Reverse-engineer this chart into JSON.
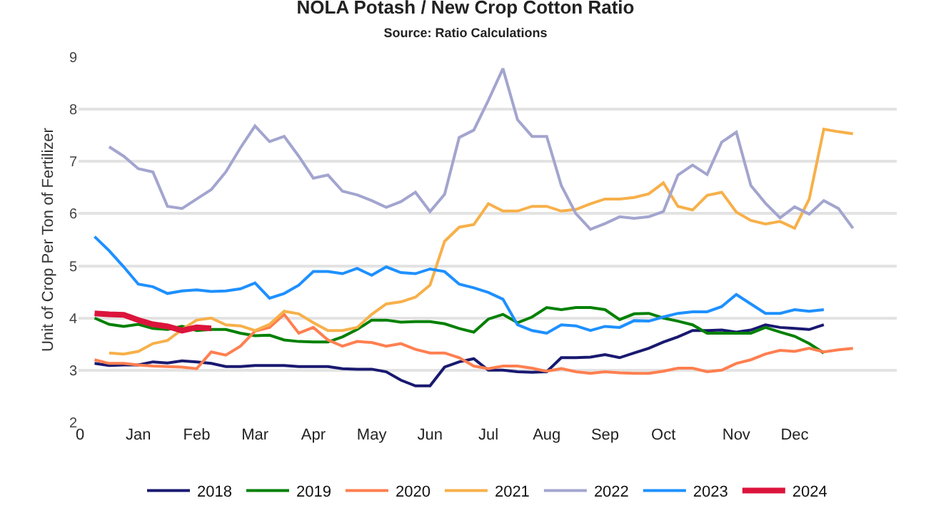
{
  "chart_data": {
    "type": "line",
    "title": "NOLA Potash / New Crop Cotton Ratio",
    "subtitle": "Source: Ratio Calculations",
    "ylabel": "Unit of Crop Per Ton of Fertilizer",
    "categories": [
      "0",
      null,
      null,
      null,
      "Jan",
      null,
      null,
      null,
      "Feb",
      null,
      null,
      null,
      "Mar",
      null,
      null,
      null,
      "Apr",
      null,
      null,
      null,
      "May",
      null,
      null,
      null,
      "Jun",
      null,
      null,
      null,
      "Jul",
      null,
      null,
      null,
      "Aug",
      null,
      null,
      null,
      "Sep",
      null,
      null,
      null,
      "Oct",
      null,
      null,
      null,
      null,
      "Nov",
      null,
      null,
      null,
      "Dec",
      null,
      null,
      null,
      null
    ],
    "ylim": [
      2,
      9
    ],
    "yticks": [
      2,
      3,
      4,
      5,
      6,
      7,
      8,
      9
    ],
    "grid": "y",
    "legend": "bottom",
    "series": [
      {
        "name": "2018",
        "color": "#191970",
        "values": [
          null,
          3.13,
          3.09,
          3.1,
          3.1,
          3.16,
          3.14,
          3.18,
          3.16,
          3.13,
          3.07,
          3.07,
          3.09,
          3.09,
          3.09,
          3.07,
          3.07,
          3.07,
          3.03,
          3.02,
          3.02,
          2.97,
          2.81,
          2.7,
          2.7,
          3.06,
          3.16,
          3.22,
          3.0,
          3.0,
          2.97,
          2.96,
          2.97,
          3.24,
          3.24,
          3.25,
          3.3,
          3.24,
          3.33,
          3.42,
          3.54,
          3.64,
          3.76,
          3.76,
          3.77,
          3.73,
          3.77,
          3.87,
          3.82,
          3.8,
          3.78,
          3.87,
          null,
          null
        ]
      },
      {
        "name": "2019",
        "color": "#008000",
        "values": [
          null,
          4.0,
          3.88,
          3.84,
          3.88,
          3.8,
          3.78,
          3.84,
          3.76,
          3.78,
          3.78,
          3.71,
          3.66,
          3.67,
          3.58,
          3.55,
          3.54,
          3.54,
          3.64,
          3.78,
          3.96,
          3.96,
          3.92,
          3.93,
          3.93,
          3.89,
          3.8,
          3.73,
          3.98,
          4.07,
          3.91,
          4.02,
          4.2,
          4.16,
          4.2,
          4.2,
          4.16,
          3.97,
          4.08,
          4.09,
          4.0,
          3.94,
          3.87,
          3.71,
          3.71,
          3.71,
          3.71,
          3.82,
          3.73,
          3.65,
          3.51,
          3.33,
          null,
          null
        ]
      },
      {
        "name": "2020",
        "color": "#ff7f50",
        "values": [
          null,
          3.2,
          3.13,
          3.13,
          3.1,
          3.08,
          3.07,
          3.06,
          3.03,
          3.35,
          3.29,
          3.46,
          3.75,
          3.82,
          4.07,
          3.71,
          3.82,
          3.58,
          3.46,
          3.55,
          3.53,
          3.46,
          3.51,
          3.4,
          3.33,
          3.33,
          3.24,
          3.08,
          3.03,
          3.08,
          3.08,
          3.04,
          2.98,
          3.03,
          2.97,
          2.94,
          2.97,
          2.95,
          2.94,
          2.94,
          2.98,
          3.04,
          3.04,
          2.97,
          3.0,
          3.13,
          3.2,
          3.31,
          3.38,
          3.36,
          3.42,
          3.35,
          3.39,
          3.42
        ]
      },
      {
        "name": "2021",
        "color": "#f7b04a",
        "values": [
          null,
          null,
          3.33,
          3.31,
          3.36,
          3.51,
          3.57,
          3.78,
          3.96,
          4.0,
          3.87,
          3.85,
          3.76,
          3.88,
          4.13,
          4.08,
          3.91,
          3.76,
          3.76,
          3.82,
          4.07,
          4.27,
          4.31,
          4.4,
          4.63,
          5.47,
          5.74,
          5.79,
          6.19,
          6.05,
          6.05,
          6.14,
          6.14,
          6.05,
          6.08,
          6.19,
          6.28,
          6.28,
          6.31,
          6.38,
          6.59,
          6.14,
          6.07,
          6.35,
          6.41,
          6.03,
          5.87,
          5.8,
          5.85,
          5.72,
          6.28,
          7.62,
          7.57,
          7.53
        ]
      },
      {
        "name": "2022",
        "color": "#a3a5cf",
        "values": [
          null,
          null,
          7.28,
          7.1,
          6.86,
          6.8,
          6.14,
          6.1,
          6.28,
          6.46,
          6.8,
          7.26,
          7.68,
          7.38,
          7.48,
          7.1,
          6.68,
          6.74,
          6.43,
          6.36,
          6.25,
          6.12,
          6.23,
          6.41,
          6.04,
          6.37,
          7.46,
          7.6,
          8.17,
          8.78,
          7.8,
          7.48,
          7.48,
          6.54,
          6.0,
          5.7,
          5.81,
          5.94,
          5.91,
          5.94,
          6.04,
          6.74,
          6.93,
          6.75,
          7.37,
          7.56,
          6.54,
          6.2,
          5.92,
          6.13,
          5.99,
          6.25,
          6.1,
          5.72
        ]
      },
      {
        "name": "2023",
        "color": "#1e90ff",
        "values": [
          null,
          5.56,
          5.29,
          4.98,
          4.65,
          4.6,
          4.47,
          4.52,
          4.54,
          4.51,
          4.52,
          4.56,
          4.67,
          4.38,
          4.47,
          4.63,
          4.89,
          4.89,
          4.85,
          4.95,
          4.82,
          4.98,
          4.87,
          4.85,
          4.94,
          4.89,
          4.65,
          4.58,
          4.49,
          4.36,
          3.87,
          3.76,
          3.71,
          3.87,
          3.85,
          3.76,
          3.84,
          3.82,
          3.95,
          3.94,
          4.02,
          4.09,
          4.12,
          4.12,
          4.22,
          4.45,
          4.27,
          4.09,
          4.09,
          4.16,
          4.13,
          4.16,
          null,
          null
        ]
      },
      {
        "name": "2024",
        "color": "#dc143c",
        "values": [
          null,
          4.09,
          4.07,
          4.06,
          3.96,
          3.88,
          3.84,
          3.76,
          3.82,
          3.8,
          null,
          null,
          null,
          null,
          null,
          null,
          null,
          null,
          null,
          null,
          null,
          null,
          null,
          null,
          null,
          null,
          null,
          null,
          null,
          null,
          null,
          null,
          null,
          null,
          null,
          null,
          null,
          null,
          null,
          null,
          null,
          null,
          null,
          null,
          null,
          null,
          null,
          null,
          null,
          null,
          null,
          null,
          null,
          null
        ]
      }
    ]
  }
}
